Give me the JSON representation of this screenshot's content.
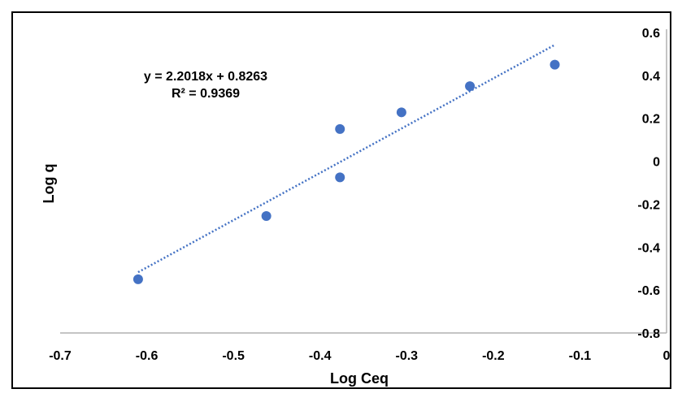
{
  "chart_data": {
    "type": "scatter",
    "title": "",
    "xlabel": "Log Ceq",
    "ylabel": "Log q",
    "xlim": [
      -0.7,
      0
    ],
    "ylim": [
      -0.8,
      0.6
    ],
    "x_ticks": [
      -0.7,
      -0.6,
      -0.5,
      -0.4,
      -0.3,
      -0.2,
      -0.1,
      0
    ],
    "y_ticks": [
      0.6,
      0.4,
      0.2,
      0,
      -0.2,
      -0.4,
      -0.6,
      -0.8
    ],
    "x_tick_labels": [
      "-0.7",
      "-0.6",
      "-0.5",
      "-0.4",
      "-0.3",
      "-0.2",
      "-0.1",
      "0"
    ],
    "y_tick_labels": [
      "0.6",
      "0.4",
      "0.2",
      "0",
      "-0.2",
      "-0.4",
      "-0.6",
      "-0.8"
    ],
    "grid": false,
    "series": [
      {
        "x": [
          -0.61,
          -0.462,
          -0.377,
          -0.377,
          -0.306,
          -0.227,
          -0.129
        ],
        "y": [
          -0.55,
          -0.255,
          0.15,
          -0.075,
          0.228,
          0.35,
          0.45
        ],
        "color": "#4472C4"
      }
    ],
    "trendline": {
      "type": "linear",
      "slope": 2.2018,
      "intercept": 0.8263,
      "x_range": [
        -0.61,
        -0.129
      ],
      "color": "#4472C4",
      "style": "dotted"
    },
    "annotations": {
      "equation": "y = 2.2018x + 0.8263",
      "r_squared": "R² = 0.9369"
    }
  }
}
